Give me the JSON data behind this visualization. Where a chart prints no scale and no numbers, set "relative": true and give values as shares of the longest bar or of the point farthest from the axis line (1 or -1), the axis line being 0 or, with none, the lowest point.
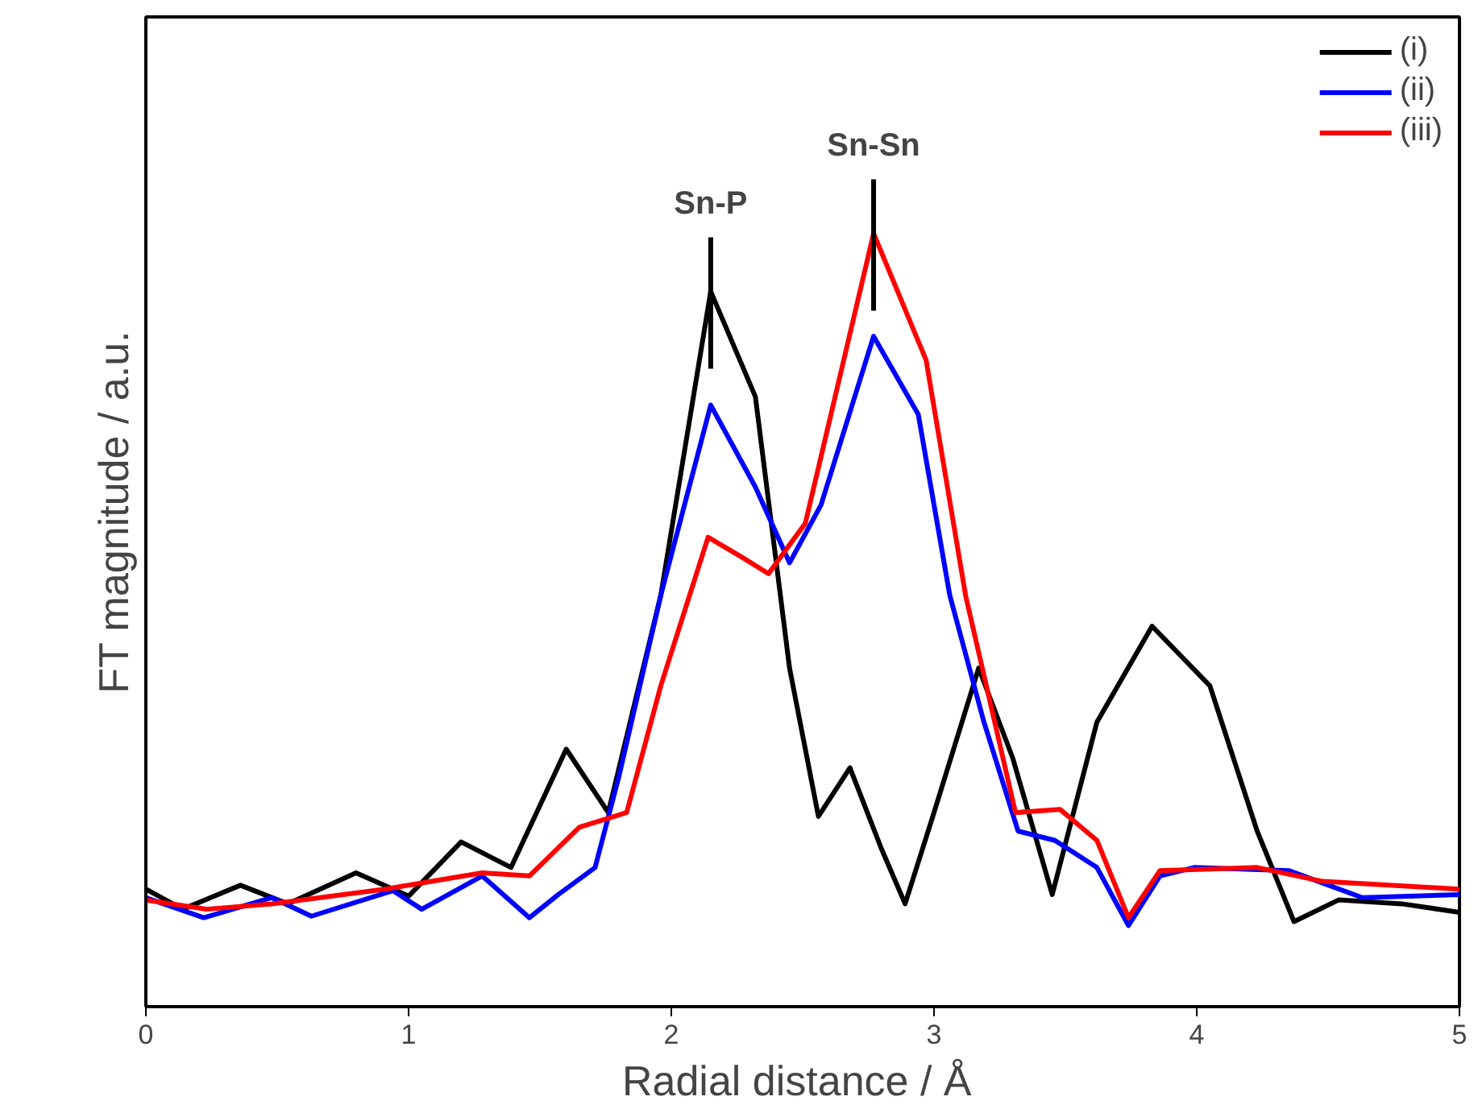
{
  "chart_data": {
    "type": "line",
    "relative": true,
    "xlabel": "Radial distance /  Å",
    "ylabel": "FT magnitude / a.u.",
    "xlim": [
      0,
      5
    ],
    "xticks": [
      0,
      1,
      2,
      3,
      4,
      5
    ],
    "grid": false,
    "legend": "top right",
    "line_style": "solid",
    "marker": "none",
    "series": [
      {
        "name": "(i)",
        "color": "#000000",
        "x": [
          0,
          0.14,
          0.36,
          0.54,
          0.8,
          1.0,
          1.2,
          1.39,
          1.6,
          1.76,
          1.96,
          2.15,
          2.32,
          2.45,
          2.56,
          2.68,
          2.8,
          2.89,
          3.0,
          3.17,
          3.3,
          3.45,
          3.62,
          3.83,
          4.05,
          4.23,
          4.37,
          4.54,
          4.78,
          5.0
        ],
        "values": [
          0.152,
          0.126,
          0.157,
          0.133,
          0.173,
          0.143,
          0.213,
          0.18,
          0.333,
          0.251,
          0.532,
          0.925,
          0.789,
          0.438,
          0.246,
          0.309,
          0.204,
          0.133,
          0.251,
          0.438,
          0.321,
          0.145,
          0.368,
          0.492,
          0.415,
          0.227,
          0.11,
          0.138,
          0.133,
          0.122
        ]
      },
      {
        "name": "(ii)",
        "color": "#0000ff",
        "x": [
          0,
          0.22,
          0.48,
          0.63,
          0.94,
          1.05,
          1.28,
          1.46,
          1.57,
          1.71,
          1.8,
          1.96,
          2.15,
          2.32,
          2.45,
          2.57,
          2.77,
          2.94,
          3.06,
          3.19,
          3.32,
          3.46,
          3.62,
          3.74,
          3.86,
          3.99,
          4.35,
          4.63,
          5.0
        ],
        "values": [
          0.141,
          0.115,
          0.141,
          0.117,
          0.15,
          0.126,
          0.169,
          0.115,
          0.145,
          0.18,
          0.297,
          0.532,
          0.778,
          0.672,
          0.574,
          0.649,
          0.867,
          0.766,
          0.532,
          0.368,
          0.227,
          0.215,
          0.18,
          0.105,
          0.169,
          0.18,
          0.176,
          0.141,
          0.145
        ]
      },
      {
        "name": "(iii)",
        "color": "#ff0000",
        "x": [
          0,
          0.23,
          0.48,
          0.91,
          1.28,
          1.46,
          1.65,
          1.83,
          1.96,
          2.14,
          2.26,
          2.37,
          2.51,
          2.77,
          2.97,
          3.12,
          3.31,
          3.48,
          3.62,
          3.74,
          3.86,
          4.23,
          4.48,
          5.0
        ],
        "values": [
          0.138,
          0.126,
          0.133,
          0.152,
          0.173,
          0.169,
          0.232,
          0.251,
          0.415,
          0.607,
          0.583,
          0.56,
          0.625,
          1.0,
          0.836,
          0.532,
          0.251,
          0.255,
          0.215,
          0.115,
          0.176,
          0.18,
          0.162,
          0.152
        ]
      }
    ],
    "annotations": [
      "Sn-P",
      "Sn-Sn"
    ]
  }
}
